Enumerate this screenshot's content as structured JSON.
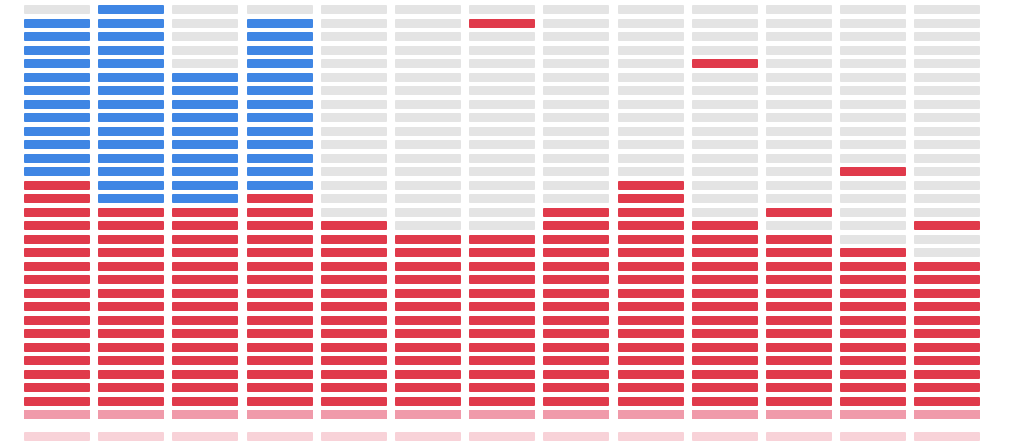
{
  "equalizer": {
    "segments_per_column": 31,
    "colors": {
      "blue": "#3f86e4",
      "red": "#e03a4b",
      "off": "#e4e4e4",
      "reflection": "#f09aaa"
    },
    "columns": [
      {
        "red_fill": 18,
        "blue_top": 30,
        "peak": 30
      },
      {
        "red_fill": 16,
        "blue_top": 31,
        "peak": 31
      },
      {
        "red_fill": 16,
        "blue_top": 26,
        "peak": 26
      },
      {
        "red_fill": 17,
        "blue_top": 30,
        "peak": 30
      },
      {
        "red_fill": 15,
        "blue_top": 0,
        "peak": 15
      },
      {
        "red_fill": 14,
        "blue_top": 0,
        "peak": 14
      },
      {
        "red_fill": 14,
        "blue_top": 0,
        "peak": 30
      },
      {
        "red_fill": 16,
        "blue_top": 0,
        "peak": 16
      },
      {
        "red_fill": 18,
        "blue_top": 0,
        "peak": 18
      },
      {
        "red_fill": 15,
        "blue_top": 0,
        "peak": 27
      },
      {
        "red_fill": 14,
        "blue_top": 0,
        "peak": 16
      },
      {
        "red_fill": 13,
        "blue_top": 0,
        "peak": 19
      },
      {
        "red_fill": 12,
        "blue_top": 0,
        "peak": 15
      }
    ]
  }
}
